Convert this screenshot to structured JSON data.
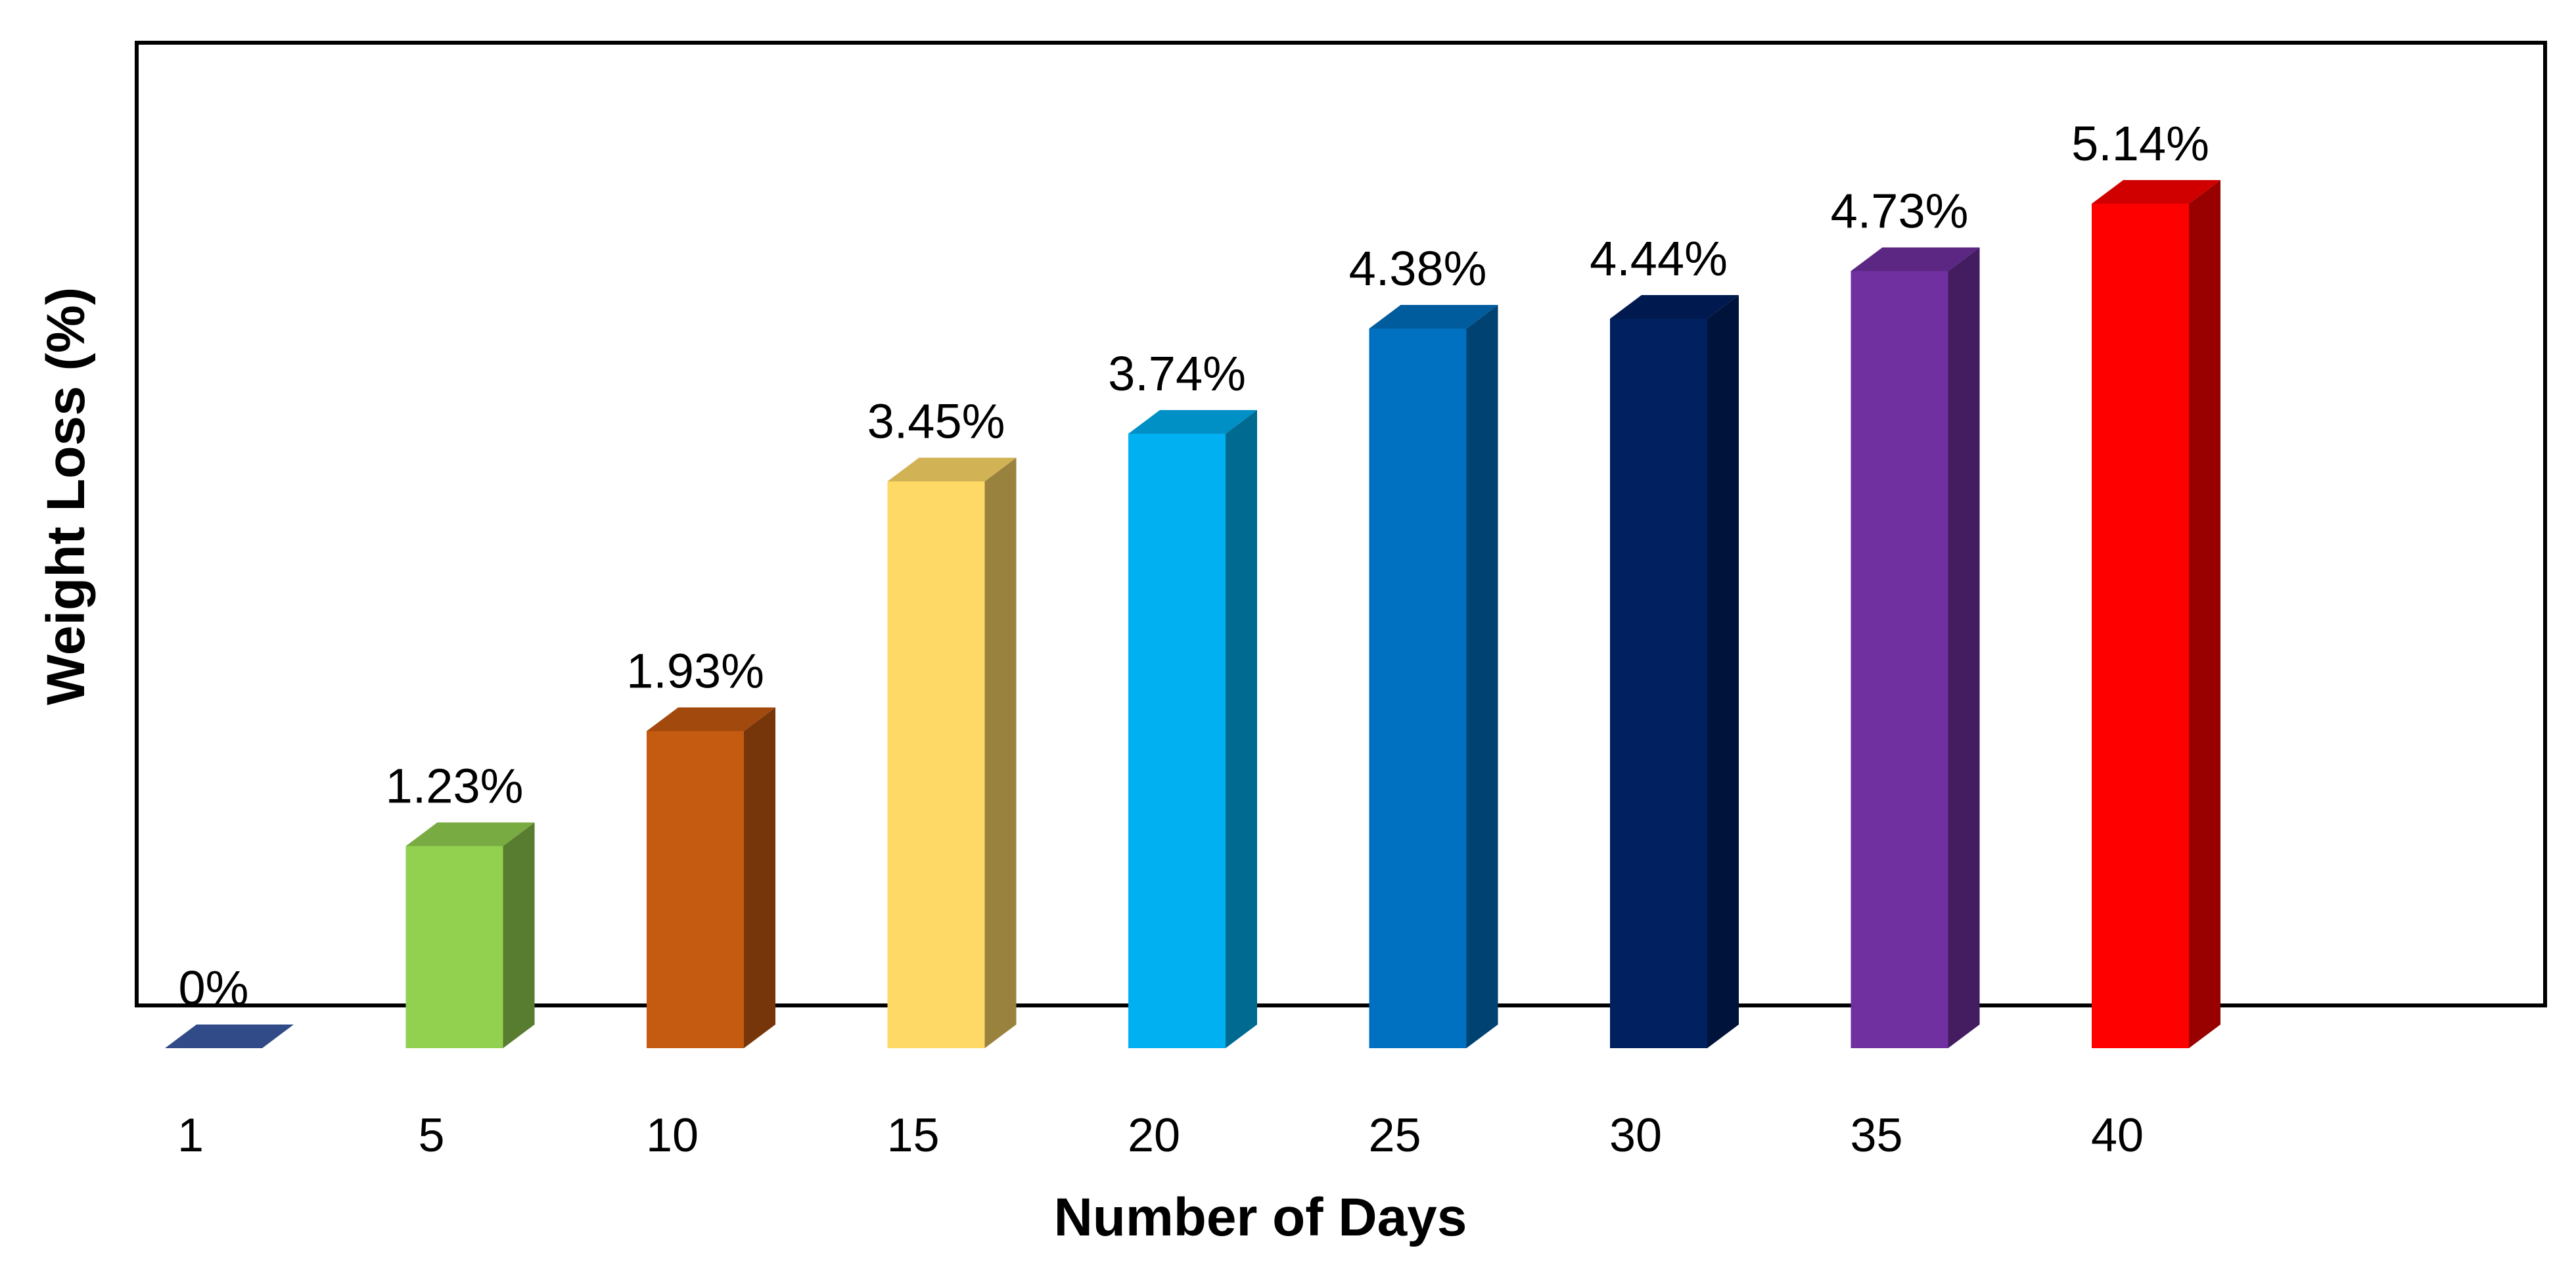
{
  "chart_data": {
    "type": "bar",
    "title": "",
    "xlabel": "Number of Days",
    "ylabel": "Weight Loss (%)",
    "ylim": [
      0,
      5.6
    ],
    "grid": false,
    "categories": [
      "1",
      "5",
      "10",
      "15",
      "20",
      "25",
      "30",
      "35",
      "40"
    ],
    "values": [
      0,
      1.23,
      1.93,
      3.45,
      3.74,
      4.38,
      4.44,
      4.73,
      5.14
    ],
    "data_labels": [
      "0%",
      "1.23%",
      "1.93%",
      "3.45%",
      "3.74%",
      "4.38%",
      "4.44%",
      "4.73%",
      "5.14%"
    ],
    "colors": [
      "#3B5BA5",
      "#92D050",
      "#C55A11",
      "#FFD966",
      "#00B0F0",
      "#0070C0",
      "#002060",
      "#7030A0",
      "#FF0000"
    ],
    "style": "3d-column"
  }
}
